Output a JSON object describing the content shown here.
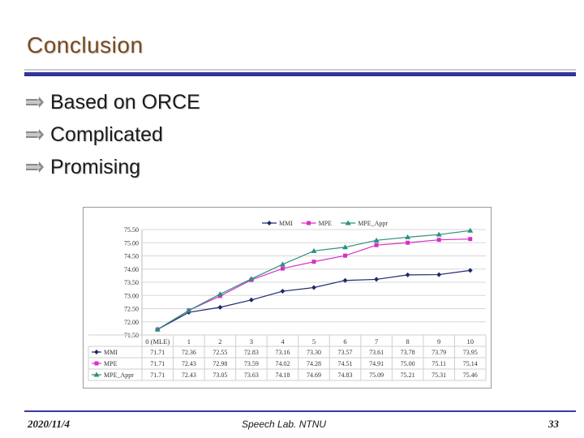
{
  "slide": {
    "title": "Conclusion",
    "bullets": [
      "Based on ORCE",
      "Complicated",
      "Promising"
    ],
    "footer_date": "2020/11/4",
    "footer_center": "Speech Lab. NTNU",
    "page_number": "33"
  },
  "colors": {
    "title": "#7a4a1e",
    "rule": "#3a3aa8",
    "MMI": "#1f2a6b",
    "MPE": "#d62fc8",
    "MPE_Appr": "#2a8f7f"
  },
  "chart_data": {
    "type": "line",
    "categories": [
      "0 (MLE)",
      "1",
      "2",
      "3",
      "4",
      "5",
      "6",
      "7",
      "8",
      "9",
      "10"
    ],
    "ylim": [
      71.5,
      75.5
    ],
    "yticks": [
      "71.50",
      "72.00",
      "72.50",
      "73.00",
      "73.50",
      "74.00",
      "74.50",
      "75.00",
      "75.50"
    ],
    "grid": true,
    "legend": "top",
    "series": [
      {
        "name": "MMI",
        "marker": "diamond",
        "values": [
          71.71,
          72.36,
          72.55,
          72.83,
          73.16,
          73.3,
          73.57,
          73.61,
          73.78,
          73.79,
          73.95
        ],
        "labels": [
          "71.71",
          "72.36",
          "72.55",
          "72.83",
          "73.16",
          "73.30",
          "73.57",
          "73.61",
          "73.78",
          "73.79",
          "73.95"
        ]
      },
      {
        "name": "MPE",
        "marker": "square",
        "values": [
          71.71,
          72.43,
          72.98,
          73.59,
          74.02,
          74.28,
          74.51,
          74.91,
          75.0,
          75.11,
          75.14
        ],
        "labels": [
          "71.71",
          "72.43",
          "72.98",
          "73.59",
          "74.02",
          "74.28",
          "74.51",
          "74.91",
          "75.00",
          "75.11",
          "75.14"
        ]
      },
      {
        "name": "MPE_Appr",
        "marker": "triangle",
        "values": [
          71.71,
          72.43,
          73.05,
          73.63,
          74.18,
          74.69,
          74.83,
          75.09,
          75.21,
          75.31,
          75.46
        ],
        "labels": [
          "71.71",
          "72.43",
          "73.05",
          "73.63",
          "74.18",
          "74.69",
          "74.83",
          "75.09",
          "75.21",
          "75.31",
          "75.46"
        ]
      }
    ]
  }
}
